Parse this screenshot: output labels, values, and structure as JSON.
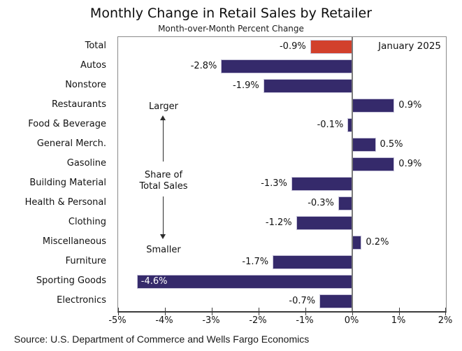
{
  "title": "Monthly Change in Retail Sales by Retailer",
  "subtitle": "Month-over-Month Percent Change",
  "annotation": {
    "date": "January 2025",
    "larger": "Larger",
    "share_line1": "Share of",
    "share_line2": "Total Sales",
    "smaller": "Smaller"
  },
  "source": "Source: U.S. Department of Commerce and Wells Fargo Economics",
  "colors": {
    "bar": "#352A6B",
    "highlight": "#D2402C",
    "bar_border": "#C6C3D9",
    "axis": "#3C3C3C",
    "frame": "#8A8A8A",
    "zero_line": "#7A7A7A"
  },
  "chart_data": {
    "type": "bar",
    "orientation": "horizontal",
    "title": "Monthly Change in Retail Sales by Retailer",
    "subtitle": "Month-over-Month Percent Change",
    "categories": [
      "Total",
      "Autos",
      "Nonstore",
      "Restaurants",
      "Food & Beverage",
      "General Merch.",
      "Gasoline",
      "Building Material",
      "Health & Personal",
      "Clothing",
      "Miscellaneous",
      "Furniture",
      "Sporting Goods",
      "Electronics"
    ],
    "values": [
      -0.9,
      -2.8,
      -1.9,
      0.9,
      -0.1,
      0.5,
      0.9,
      -1.3,
      -0.3,
      -1.2,
      0.2,
      -1.7,
      -4.6,
      -0.7
    ],
    "labels": [
      "-0.9%",
      "-2.8%",
      "-1.9%",
      "0.9%",
      "-0.1%",
      "0.5%",
      "0.9%",
      "-1.3%",
      "-0.3%",
      "-1.2%",
      "0.2%",
      "-1.7%",
      "-4.6%",
      "-0.7%"
    ],
    "highlight_index": 0,
    "inside_label_indices": [
      12
    ],
    "xlim": [
      -5,
      2
    ],
    "xtick_values": [
      -5,
      -4,
      -3,
      -2,
      -1,
      0,
      1,
      2
    ],
    "xtick_labels": [
      "-5%",
      "-4%",
      "-3%",
      "-2%",
      "-1%",
      "0%",
      "1%",
      "2%"
    ],
    "grid": false,
    "legend": false
  }
}
